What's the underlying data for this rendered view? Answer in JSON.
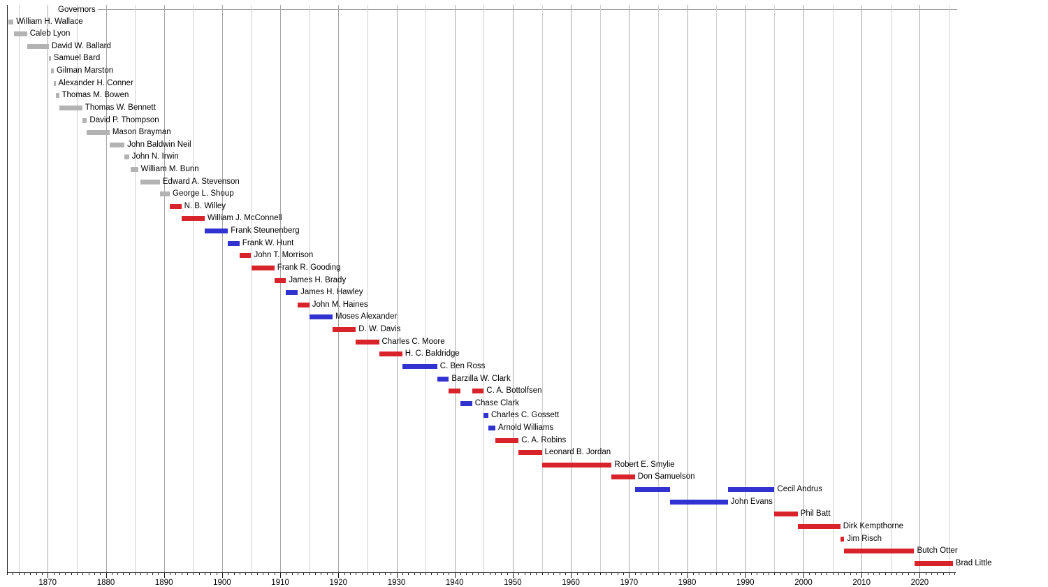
{
  "chart_data": {
    "type": "timeline",
    "title": "Governors",
    "axis": {
      "unit": "year",
      "start": 1863,
      "end": 2026.2,
      "minor_tick_interval": 1,
      "major_tick_interval": 10,
      "gridline_interval": 5,
      "tick_labels": [
        "1870",
        "1880",
        "1890",
        "1900",
        "1910",
        "1920",
        "1930",
        "1940",
        "1950",
        "1960",
        "1970",
        "1980",
        "1990",
        "2000",
        "2010",
        "2020"
      ]
    },
    "legend_colors": {
      "territorial": "#b3b3b3",
      "republican": "#d8232a",
      "democratic": "#3133d1"
    },
    "governors": [
      {
        "name": "William H. Wallace",
        "party": "territorial",
        "terms": [
          [
            1863.25,
            1864.1
          ]
        ]
      },
      {
        "name": "Caleb Lyon",
        "party": "territorial",
        "terms": [
          [
            1864.15,
            1866.45
          ]
        ]
      },
      {
        "name": "David W. Ballard",
        "party": "territorial",
        "terms": [
          [
            1866.45,
            1870.2
          ]
        ]
      },
      {
        "name": "Samuel Bard",
        "party": "territorial",
        "terms": [
          [
            1870.25,
            1870.55
          ]
        ]
      },
      {
        "name": "Gilman Marston",
        "party": "territorial",
        "terms": [
          [
            1870.55,
            1871.05
          ]
        ]
      },
      {
        "name": "Alexander H. Conner",
        "party": "territorial",
        "terms": [
          [
            1871.05,
            1871.35
          ]
        ]
      },
      {
        "name": "Thomas M. Bowen",
        "party": "territorial",
        "terms": [
          [
            1871.35,
            1871.95
          ]
        ]
      },
      {
        "name": "Thomas W. Bennett",
        "party": "territorial",
        "terms": [
          [
            1871.95,
            1875.95
          ]
        ]
      },
      {
        "name": "David P. Thompson",
        "party": "territorial",
        "terms": [
          [
            1875.95,
            1876.75
          ]
        ]
      },
      {
        "name": "Mason Brayman",
        "party": "territorial",
        "terms": [
          [
            1876.75,
            1880.65
          ]
        ]
      },
      {
        "name": "John Baldwin Neil",
        "party": "territorial",
        "terms": [
          [
            1880.65,
            1883.2
          ]
        ]
      },
      {
        "name": "John N. Irwin",
        "party": "territorial",
        "terms": [
          [
            1883.2,
            1884.0
          ]
        ]
      },
      {
        "name": "William M. Bunn",
        "party": "territorial",
        "terms": [
          [
            1884.25,
            1885.55
          ]
        ]
      },
      {
        "name": "Edward A. Stevenson",
        "party": "territorial",
        "terms": [
          [
            1885.95,
            1889.3
          ]
        ]
      },
      {
        "name": "George L. Shoup",
        "party": "territorial",
        "terms": [
          [
            1889.3,
            1891.0
          ]
        ]
      },
      {
        "name": "N. B. Willey",
        "party": "republican",
        "terms": [
          [
            1891.0,
            1893.0
          ]
        ]
      },
      {
        "name": "William J. McConnell",
        "party": "republican",
        "terms": [
          [
            1893.0,
            1897.0
          ]
        ]
      },
      {
        "name": "Frank Steunenberg",
        "party": "democratic",
        "terms": [
          [
            1897.0,
            1901.0
          ]
        ]
      },
      {
        "name": "Frank W. Hunt",
        "party": "democratic",
        "terms": [
          [
            1901.0,
            1903.0
          ]
        ]
      },
      {
        "name": "John T. Morrison",
        "party": "republican",
        "terms": [
          [
            1903.0,
            1905.0
          ]
        ]
      },
      {
        "name": "Frank R. Gooding",
        "party": "republican",
        "terms": [
          [
            1905.0,
            1909.0
          ]
        ]
      },
      {
        "name": "James H. Brady",
        "party": "republican",
        "terms": [
          [
            1909.0,
            1911.0
          ]
        ]
      },
      {
        "name": "James H. Hawley",
        "party": "democratic",
        "terms": [
          [
            1911.0,
            1913.0
          ]
        ]
      },
      {
        "name": "John M. Haines",
        "party": "republican",
        "terms": [
          [
            1913.0,
            1915.0
          ]
        ]
      },
      {
        "name": "Moses Alexander",
        "party": "democratic",
        "terms": [
          [
            1915.0,
            1919.0
          ]
        ]
      },
      {
        "name": "D. W. Davis",
        "party": "republican",
        "terms": [
          [
            1919.0,
            1923.0
          ]
        ]
      },
      {
        "name": "Charles C. Moore",
        "party": "republican",
        "terms": [
          [
            1923.0,
            1927.0
          ]
        ]
      },
      {
        "name": "H. C. Baldridge",
        "party": "republican",
        "terms": [
          [
            1927.0,
            1931.0
          ]
        ]
      },
      {
        "name": "C. Ben Ross",
        "party": "democratic",
        "terms": [
          [
            1931.0,
            1937.0
          ]
        ]
      },
      {
        "name": "Barzilla W. Clark",
        "party": "democratic",
        "terms": [
          [
            1937.0,
            1939.0
          ]
        ]
      },
      {
        "name": "C. A. Bottolfsen",
        "party": "republican",
        "terms": [
          [
            1939.0,
            1941.0
          ],
          [
            1943.0,
            1945.0
          ]
        ]
      },
      {
        "name": "Chase Clark",
        "party": "democratic",
        "terms": [
          [
            1941.0,
            1943.0
          ]
        ]
      },
      {
        "name": "Charles C. Gossett",
        "party": "democratic",
        "terms": [
          [
            1945.0,
            1945.8
          ]
        ]
      },
      {
        "name": "Arnold Williams",
        "party": "democratic",
        "terms": [
          [
            1945.85,
            1947.0
          ]
        ]
      },
      {
        "name": "C. A. Robins",
        "party": "republican",
        "terms": [
          [
            1947.0,
            1951.0
          ]
        ]
      },
      {
        "name": "Leonard B. Jordan",
        "party": "republican",
        "terms": [
          [
            1951.0,
            1955.0
          ]
        ]
      },
      {
        "name": "Robert E. Smylie",
        "party": "republican",
        "terms": [
          [
            1955.0,
            1967.0
          ]
        ]
      },
      {
        "name": "Don Samuelson",
        "party": "republican",
        "terms": [
          [
            1967.0,
            1971.0
          ]
        ]
      },
      {
        "name": "Cecil Andrus",
        "party": "democratic",
        "terms": [
          [
            1971.0,
            1977.0
          ],
          [
            1987.0,
            1995.0
          ]
        ]
      },
      {
        "name": "John Evans",
        "party": "democratic",
        "terms": [
          [
            1977.0,
            1987.0
          ]
        ]
      },
      {
        "name": "Phil Batt",
        "party": "republican",
        "terms": [
          [
            1995.0,
            1999.0
          ]
        ]
      },
      {
        "name": "Dirk Kempthorne",
        "party": "republican",
        "terms": [
          [
            1999.0,
            2006.35
          ]
        ]
      },
      {
        "name": "Jim Risch",
        "party": "republican",
        "terms": [
          [
            2006.35,
            2007.0
          ]
        ]
      },
      {
        "name": "Butch Otter",
        "party": "republican",
        "terms": [
          [
            2007.0,
            2019.05
          ]
        ]
      },
      {
        "name": "Brad Little",
        "party": "republican",
        "terms": [
          [
            2019.05,
            2025.7
          ]
        ]
      }
    ]
  }
}
